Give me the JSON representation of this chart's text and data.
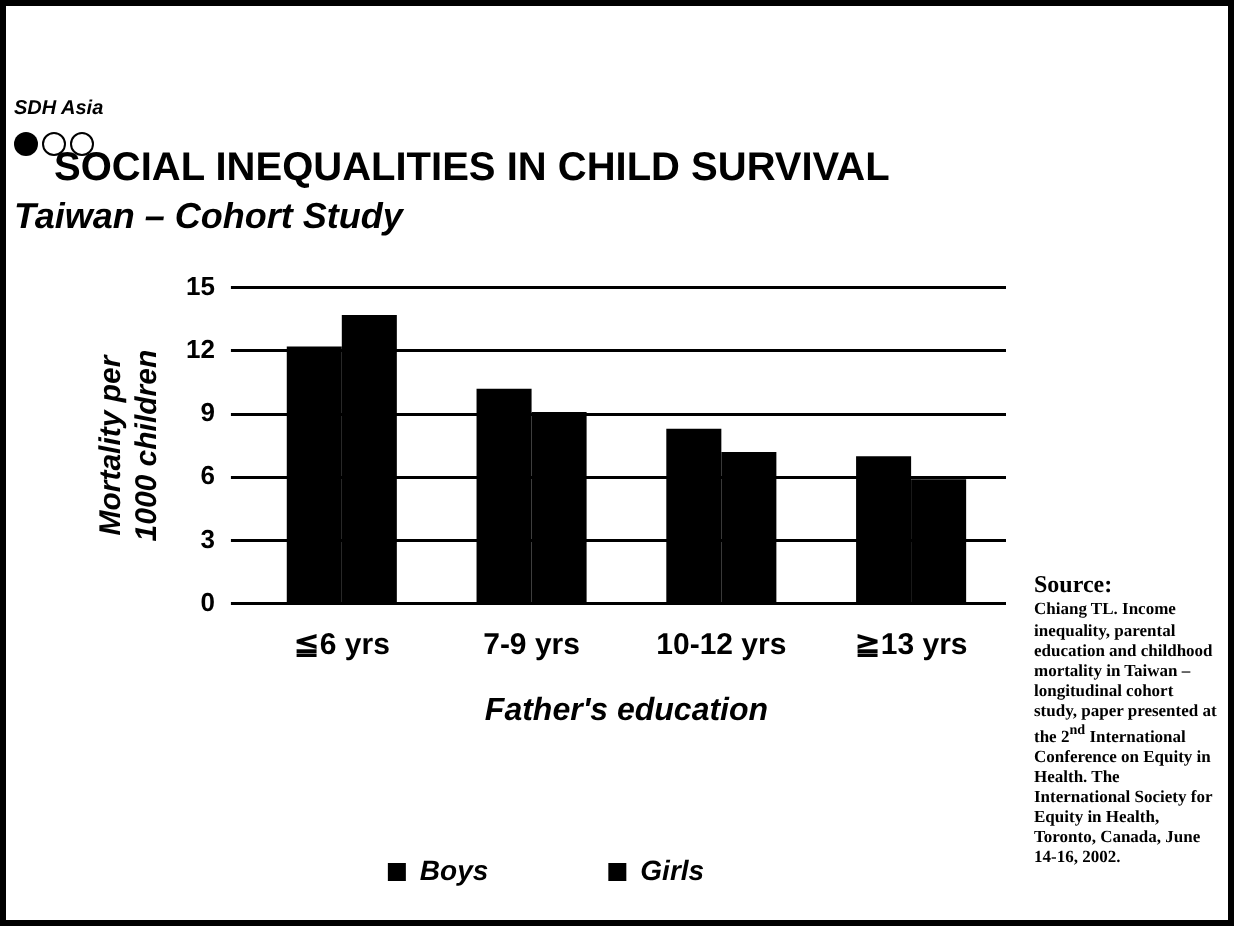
{
  "chart_data": {
    "type": "bar",
    "title": "SOCIAL INEQUALITIES IN CHILD SURVIVAL",
    "subtitle": "Taiwan – Cohort Study",
    "xlabel": "Father's education",
    "ylabel": "Mortality per 1000 children",
    "categories": [
      "≦6 yrs",
      "7-9 yrs",
      "10-12 yrs",
      "≧13 yrs"
    ],
    "series": [
      {
        "name": "Boys",
        "color": "#000000",
        "values": [
          12.2,
          10.2,
          8.3,
          7.0
        ]
      },
      {
        "name": "Girls",
        "color": "#000000",
        "values": [
          13.7,
          9.1,
          7.2,
          5.9
        ]
      }
    ],
    "ylim": [
      0,
      15
    ],
    "yticks": [
      0,
      3,
      6,
      9,
      12,
      15
    ],
    "grid": "y",
    "legend": "bottom",
    "annotations": [
      "SDH Asia",
      "Source:",
      "Chiang TL. Income inequality, parental education and childhood mortality in Taiwan – longitudinal cohort study, paper presented at the 2$^{nd}$ International Conference on Equity in Health. The International Society for Equity in Health, Toronto, Canada, June 14-16, 2002."
    ]
  }
}
